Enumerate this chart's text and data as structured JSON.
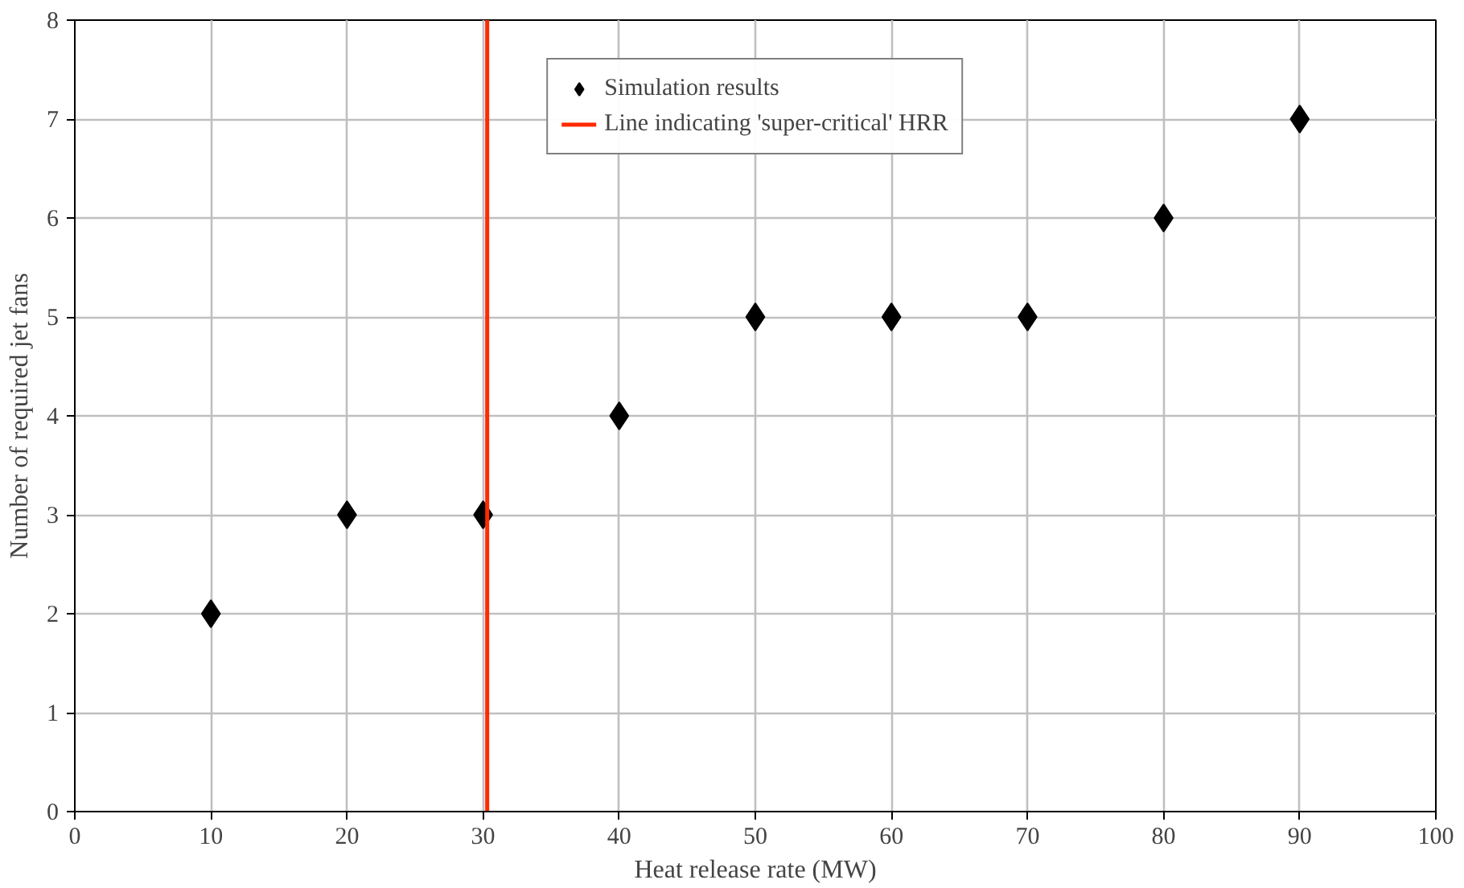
{
  "chart_data": {
    "type": "scatter",
    "xlabel": "Heat release rate (MW)",
    "ylabel": "Number of required jet fans",
    "x": [
      10,
      20,
      30,
      40,
      50,
      60,
      70,
      80,
      90
    ],
    "series": [
      {
        "name": "Simulation results",
        "color": "#000000",
        "values": [
          2,
          3,
          3,
          4,
          5,
          5,
          5,
          6,
          7
        ]
      },
      {
        "name": "Line indicating 'super-critical' HRR",
        "type": "line",
        "color": "#ff2a00",
        "x": [
          30.3,
          30.3
        ],
        "values": [
          0,
          8
        ],
        "line_style": "solid",
        "marker": "none"
      }
    ],
    "xlim": [
      0,
      100
    ],
    "xticks": [
      0,
      10,
      20,
      30,
      40,
      50,
      60,
      70,
      80,
      90,
      100
    ],
    "ylim": [
      0,
      8
    ],
    "yticks": [
      0,
      1,
      2,
      3,
      4,
      5,
      6,
      7,
      8
    ],
    "grid": true,
    "legend": "top",
    "marker": "diamond"
  }
}
